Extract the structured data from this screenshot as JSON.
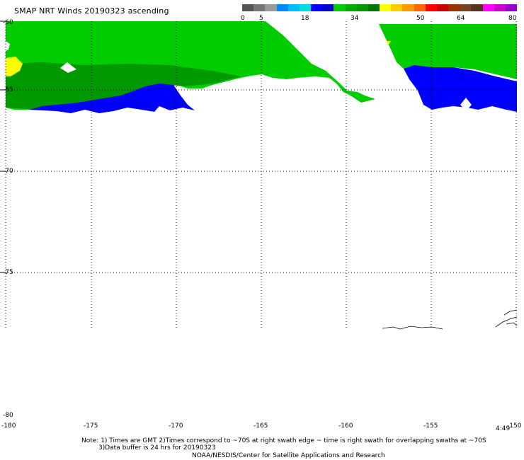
{
  "title": "SMAP NRT Winds 20190323 ascending",
  "colorbar": {
    "ticks": [
      "0",
      "5",
      "18",
      "34",
      "50",
      "64",
      "80"
    ],
    "colors": [
      "#555555",
      "#777777",
      "#999999",
      "#0088ff",
      "#00bbff",
      "#00dddd",
      "#0000ff",
      "#0000cc",
      "#00cc00",
      "#00aa00",
      "#009900",
      "#007700",
      "#ffff00",
      "#ffcc00",
      "#ff9900",
      "#ff6600",
      "#ff0000",
      "#cc0000",
      "#993300",
      "#774422",
      "#553322",
      "#ff00ff",
      "#cc00cc",
      "#9900cc"
    ]
  },
  "lat_labels": [
    "-60",
    "-65",
    "-70",
    "-75",
    "-80"
  ],
  "lon_labels": [
    "-180",
    "-175",
    "-170",
    "-165",
    "-160",
    "-155",
    "-150"
  ],
  "time_label": "4:49",
  "notes": {
    "line1": "Note: 1) Times are GMT 2)Times correspond to ~70S at right swath edge ~ time is right swath for overlapping swaths at ~70S",
    "line2": "3)Data buffer is 24 hrs for 20190323",
    "line3": "NOAA/NESDIS/Center for Satellite Applications and Research"
  },
  "colors": {
    "green": "#00cc00",
    "dark_green": "#009900",
    "blue": "#0000ff",
    "yellow": "#ffff00",
    "grid": "#000000"
  }
}
